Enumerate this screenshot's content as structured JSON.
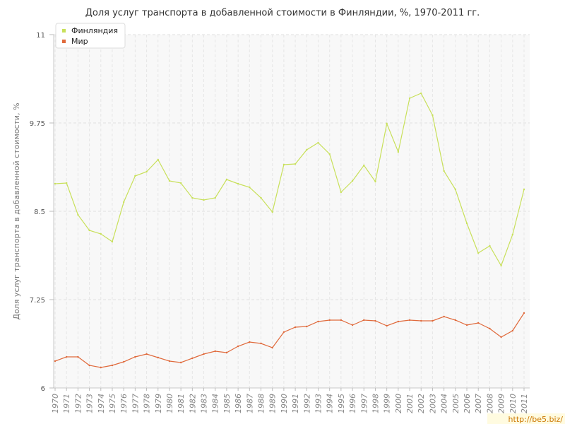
{
  "chart_data": {
    "type": "line",
    "title": "Доля услуг транспорта в добавленной стоимости в Финляндии, %, 1970-2011 гг.",
    "ylabel": "Доля услуг транспорта в добавленной стоимости, %",
    "xlabel": "",
    "ylim": [
      6,
      11
    ],
    "yticks": [
      "6",
      "7.25",
      "8.5",
      "9.75",
      "11"
    ],
    "ytick_values": [
      6,
      7.25,
      8.5,
      9.75,
      11
    ],
    "grid": true,
    "legend": "top-left",
    "x": [
      "1970",
      "1971",
      "1972",
      "1973",
      "1974",
      "1975",
      "1976",
      "1977",
      "1978",
      "1979",
      "1980",
      "1981",
      "1982",
      "1983",
      "1984",
      "1985",
      "1986",
      "1987",
      "1988",
      "1989",
      "1990",
      "1991",
      "1992",
      "1993",
      "1994",
      "1995",
      "1996",
      "1997",
      "1998",
      "1999",
      "2000",
      "2001",
      "2002",
      "2003",
      "2004",
      "2005",
      "2006",
      "2007",
      "2008",
      "2009",
      "2010",
      "2011"
    ],
    "series": [
      {
        "name": "Финляндия",
        "color": "#c8e05a",
        "values": [
          8.89,
          8.9,
          8.45,
          8.23,
          8.18,
          8.07,
          8.63,
          9.0,
          9.06,
          9.23,
          8.93,
          8.9,
          8.69,
          8.66,
          8.69,
          8.95,
          8.89,
          8.84,
          8.69,
          8.49,
          9.16,
          9.17,
          9.37,
          9.47,
          9.31,
          8.77,
          8.93,
          9.15,
          8.92,
          9.74,
          9.34,
          10.1,
          10.17,
          9.86,
          9.07,
          8.81,
          8.33,
          7.91,
          8.01,
          7.73,
          8.17,
          8.81
        ]
      },
      {
        "name": "Мир",
        "color": "#e06a3c",
        "values": [
          6.38,
          6.44,
          6.44,
          6.32,
          6.29,
          6.32,
          6.37,
          6.44,
          6.48,
          6.43,
          6.38,
          6.36,
          6.42,
          6.48,
          6.52,
          6.5,
          6.59,
          6.65,
          6.63,
          6.57,
          6.79,
          6.86,
          6.87,
          6.94,
          6.96,
          6.96,
          6.89,
          6.96,
          6.95,
          6.88,
          6.94,
          6.96,
          6.95,
          6.95,
          7.01,
          6.96,
          6.89,
          6.92,
          6.84,
          6.72,
          6.81,
          7.06
        ]
      }
    ]
  },
  "watermark": "http://be5.biz/"
}
